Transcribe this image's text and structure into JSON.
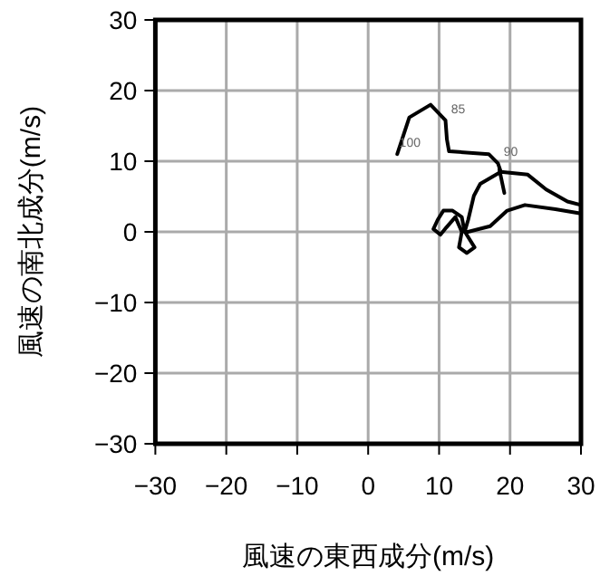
{
  "chart_data": {
    "type": "line",
    "xlabel": "風速の東西成分(m/s)",
    "ylabel": "風速の南北成分(m/s)",
    "xlim": [
      -30,
      30
    ],
    "ylim": [
      -30,
      30
    ],
    "xticks": [
      -30,
      -20,
      -10,
      0,
      10,
      20,
      30
    ],
    "yticks": [
      -30,
      -20,
      -10,
      0,
      10,
      20,
      30
    ],
    "grid": true,
    "marker": "none",
    "line_style": "solid",
    "series": [
      {
        "color": "#000000",
        "x": [
          4.1,
          5.8,
          8.8,
          10.9,
          11.1,
          11.4,
          17.0,
          18.3,
          18.7,
          15.8,
          14.9,
          14.1,
          13.6,
          13.2,
          11.9,
          10.6,
          9.8,
          9.2,
          10.2,
          11.0,
          12.3,
          13.2,
          12.8,
          13.9,
          15.0,
          13.7,
          17.2,
          19.6,
          22.1,
          26.4,
          30.0
        ],
        "values": [
          11.0,
          16.2,
          18.0,
          15.8,
          13.1,
          11.4,
          11.0,
          9.7,
          8.5,
          6.8,
          5.1,
          1.7,
          0.0,
          2.1,
          3.0,
          3.0,
          1.7,
          0.4,
          -0.4,
          0.6,
          2.1,
          -0.0,
          -2.2,
          -3.0,
          -2.2,
          -0.1,
          0.8,
          3.0,
          3.8,
          3.2,
          2.6
        ]
      },
      {
        "color": "#000000",
        "x": [
          18.7,
          22.5,
          25.1,
          28.1,
          30.0
        ],
        "values": [
          8.5,
          8.1,
          6.0,
          4.3,
          3.8
        ]
      },
      {
        "color": "#000000",
        "x": [
          18.5,
          19.2
        ],
        "values": [
          8.8,
          5.5
        ]
      }
    ],
    "annotations": [
      {
        "text": "100",
        "x": 4.1,
        "y": 11.0
      },
      {
        "text": "85",
        "x": 10.9,
        "y": 15.8
      },
      {
        "text": "90",
        "x": 18.3,
        "y": 9.7
      }
    ]
  }
}
